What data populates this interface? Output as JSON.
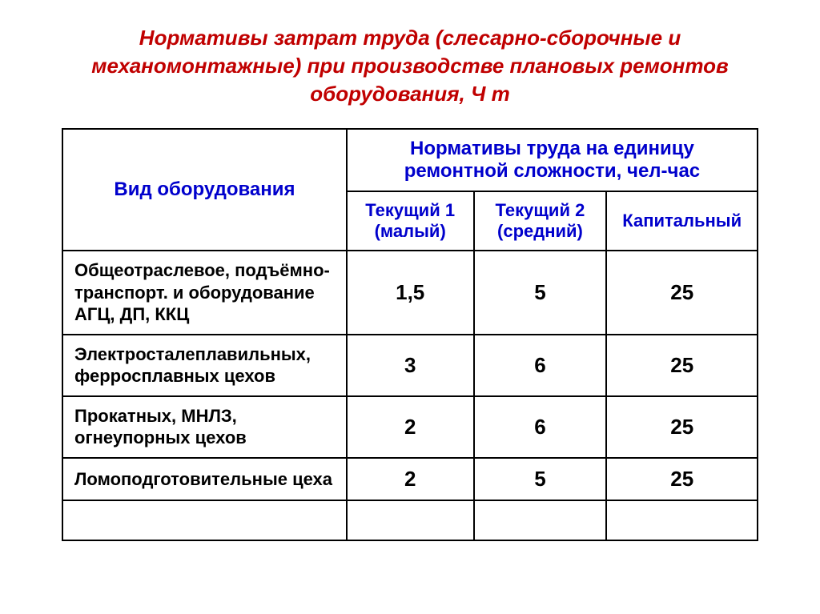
{
  "title": "Нормативы затрат труда (слесарно-сборочные и механомонтажные) при производстве плановых ремонтов оборудования, Ч т",
  "headers": {
    "equipment": "Вид оборудования",
    "norms": "Нормативы труда на единицу ремонтной сложности, чел-час",
    "col1": "Текущий 1 (малый)",
    "col2": "Текущий 2 (средний)",
    "col3": "Капитальный"
  },
  "rows": [
    {
      "label": "Общеотраслевое, подъёмно-транспорт. и оборудование АГЦ, ДП, ККЦ",
      "v1": "1,5",
      "v2": "5",
      "v3": "25"
    },
    {
      "label": "Электросталеплавильных, ферросплавных цехов",
      "v1": "3",
      "v2": "6",
      "v3": "25"
    },
    {
      "label": "Прокатных,  МНЛЗ, огнеупорных цехов",
      "v1": "2",
      "v2": "6",
      "v3": "25"
    },
    {
      "label": "Ломоподготовительные цеха",
      "v1": "2",
      "v2": "5",
      "v3": "25"
    }
  ],
  "style": {
    "title_color": "#c00000",
    "header_color": "#0000cc",
    "text_color": "#000000",
    "border_color": "#000000",
    "background": "#ffffff",
    "title_fontsize": 26,
    "header_fontsize": 24,
    "subheader_fontsize": 22,
    "label_fontsize": 22,
    "value_fontsize": 26
  }
}
